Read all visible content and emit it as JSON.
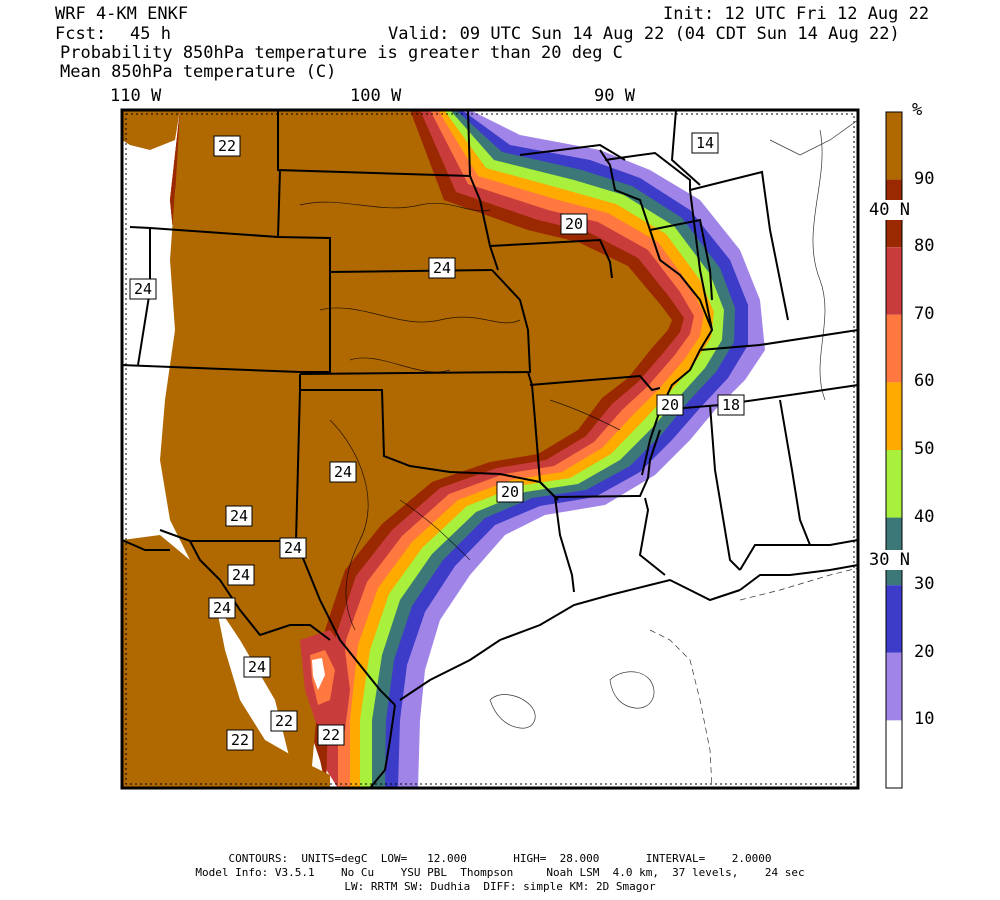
{
  "header": {
    "model": "WRF 4-KM ENKF",
    "init": "Init: 12 UTC Fri 12 Aug 22",
    "fcst_label": "Fcst:",
    "fcst_value": "45 h",
    "valid": "Valid: 09 UTC Sun 14 Aug 22 (04 CDT Sun 14 Aug 22)",
    "title1": "Probability 850hPa temperature is greater than 20 deg C",
    "title2": "Mean 850hPa temperature (C)"
  },
  "axes": {
    "lon_labels": [
      "110 W",
      "100 W",
      "90 W"
    ],
    "lat_labels": [
      "40 N",
      "30 N"
    ]
  },
  "legend": {
    "unit": "%",
    "labels": [
      "90",
      "80",
      "70",
      "60",
      "50",
      "40",
      "30",
      "20",
      "10"
    ],
    "colors": [
      "#b06800",
      "#9a2800",
      "#c83c3c",
      "#ff7840",
      "#ffaa00",
      "#a8f03c",
      "#3c7878",
      "#3c3cc8",
      "#a084e8",
      "#ffffff"
    ]
  },
  "contour_labels": [
    "22",
    "14",
    "24",
    "20",
    "24",
    "24",
    "20",
    "18",
    "24",
    "20",
    "24",
    "24",
    "24",
    "24",
    "22",
    "22",
    "22",
    "20"
  ],
  "footer": {
    "line1": "CONTOURS:  UNITS=degC  LOW=   12.000       HIGH=  28.000       INTERVAL=    2.0000",
    "line2": "Model Info: V3.5.1    No Cu    YSU PBL  Thompson     Noah LSM  4.0 km,  37 levels,    24 sec",
    "line3": "LW: RRTM SW: Dudhia  DIFF: simple KM: 2D Smagor"
  }
}
